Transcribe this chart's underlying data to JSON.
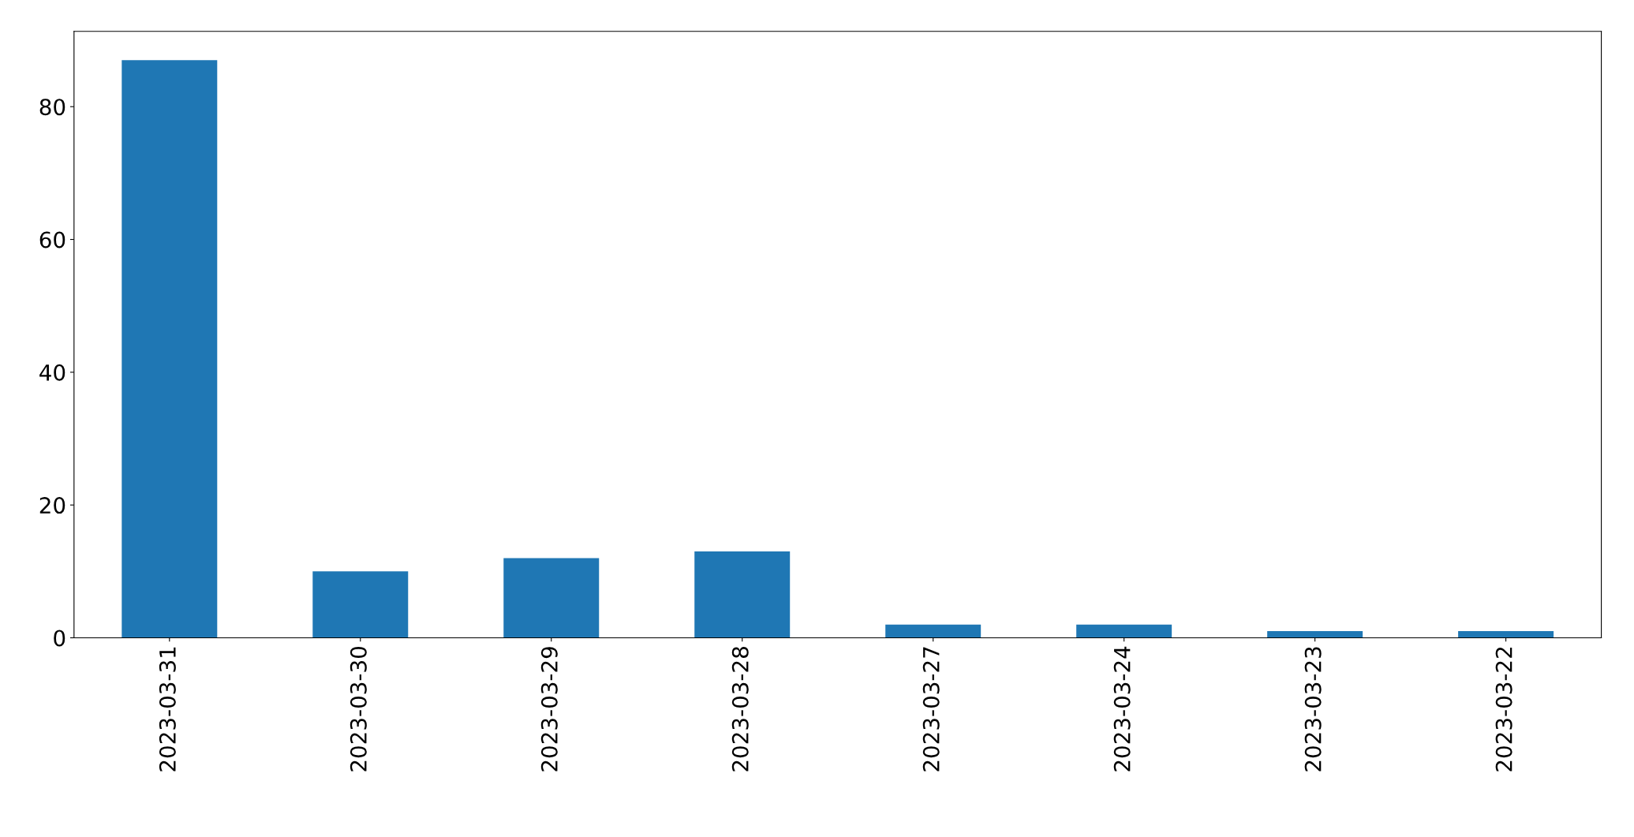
{
  "chart_data": {
    "type": "bar",
    "categories": [
      "2023-03-31",
      "2023-03-30",
      "2023-03-29",
      "2023-03-28",
      "2023-03-27",
      "2023-03-24",
      "2023-03-23",
      "2023-03-22"
    ],
    "values": [
      87,
      10,
      12,
      13,
      2,
      2,
      1,
      1
    ],
    "color": "#1f77b4",
    "ylim": [
      0,
      91.35
    ],
    "yticks": [
      0,
      20,
      40,
      60,
      80
    ],
    "grid": false,
    "legend": false
  }
}
